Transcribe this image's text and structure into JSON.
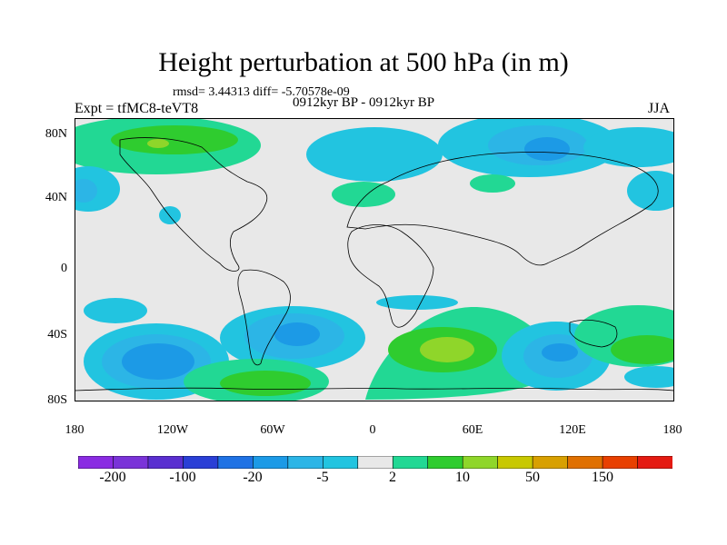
{
  "title": "Height perturbation at 500 hPa (in m)",
  "stats_line": "rmsd= 3.44313  diff= -5.70578e-09",
  "experiment_label": "Expt = tfMC8-teVT8",
  "period_label": "0912kyr BP - 0912kyr BP",
  "season_label": "JJA",
  "axes": {
    "lat_ticks": [
      "80N",
      "40N",
      "0",
      "40S",
      "80S"
    ],
    "lon_ticks": [
      "180",
      "120W",
      "60W",
      "0",
      "60E",
      "120E",
      "180"
    ]
  },
  "colorbar": {
    "colors": [
      "#8a2be2",
      "#7a33d8",
      "#5a2fd0",
      "#2a3fd6",
      "#1f72e4",
      "#1c9ae6",
      "#2cb5e6",
      "#22c4e0",
      "#e8e8e8",
      "#22d894",
      "#2fcc2f",
      "#8fd62a",
      "#c8c800",
      "#d8a000",
      "#e07000",
      "#e84000",
      "#e41a12"
    ],
    "labels": [
      "-200",
      "-100",
      "-20",
      "-5",
      "2",
      "10",
      "50",
      "150"
    ]
  },
  "palette": {
    "land_background": "#e8e8e8",
    "coast": "#000000"
  }
}
